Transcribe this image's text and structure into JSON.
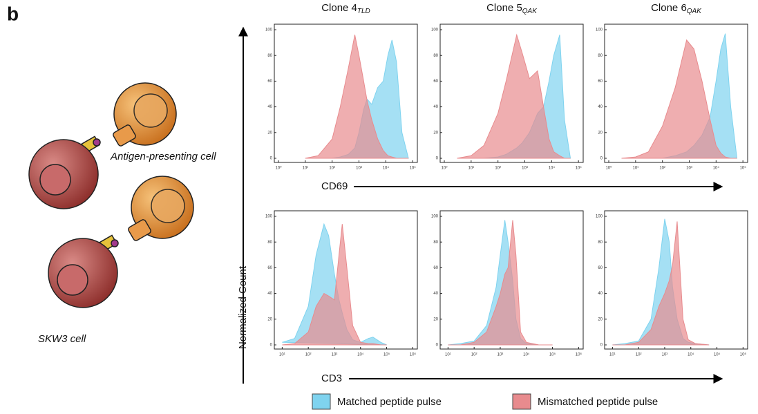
{
  "figure": {
    "panel_label": "b",
    "ylabel": "Normalized Count",
    "row_xlabels": [
      "CD69",
      "CD3"
    ],
    "diagram": {
      "apc_label": "Antigen-presenting cell",
      "t_cell_label": "SKW3 cell"
    }
  },
  "chart_data": [
    {
      "type": "histogram",
      "title": "Clone 4",
      "title_subscript": "TLD",
      "xscale": "log",
      "xlim": [
        0.7,
        150000
      ],
      "ylim": [
        0,
        100
      ],
      "yticks": [
        0,
        20,
        40,
        60,
        80,
        100
      ],
      "xticks": [
        {
          "value": 1,
          "label": "10⁰"
        },
        {
          "value": 10,
          "label": "10¹"
        },
        {
          "value": 100,
          "label": "10²"
        },
        {
          "value": 1000,
          "label": "10³"
        },
        {
          "value": 10000,
          "label": "10⁴"
        },
        {
          "value": 100000,
          "label": "10⁵"
        }
      ],
      "x": [
        10,
        30,
        100,
        200,
        400,
        700,
        1000,
        1500,
        2000,
        3000,
        5000,
        8000,
        12000,
        17000,
        25000,
        40000,
        70000
      ],
      "series": [
        {
          "name": "Matched peptide pulse",
          "color": "#7fd3ef",
          "values": [
            0,
            0,
            0,
            1,
            3,
            8,
            20,
            38,
            46,
            42,
            55,
            60,
            80,
            92,
            75,
            20,
            0
          ]
        },
        {
          "name": "Mismatched peptide pulse",
          "color": "#e88b8e",
          "values": [
            0,
            2,
            15,
            40,
            70,
            96,
            80,
            60,
            45,
            30,
            15,
            6,
            2,
            1,
            0,
            0,
            0
          ]
        }
      ]
    },
    {
      "type": "histogram",
      "title": "Clone 5",
      "title_subscript": "QAK",
      "xscale": "log",
      "xlim": [
        0.7,
        150000
      ],
      "ylim": [
        0,
        100
      ],
      "yticks": [
        0,
        20,
        40,
        60,
        80,
        100
      ],
      "xticks": [
        {
          "value": 1,
          "label": "10⁰"
        },
        {
          "value": 10,
          "label": "10¹"
        },
        {
          "value": 100,
          "label": "10²"
        },
        {
          "value": 1000,
          "label": "10³"
        },
        {
          "value": 10000,
          "label": "10⁴"
        },
        {
          "value": 100000,
          "label": "10⁵"
        }
      ],
      "x": [
        3,
        10,
        30,
        100,
        200,
        500,
        800,
        1500,
        3000,
        5000,
        8000,
        12000,
        20000,
        30000,
        50000
      ],
      "series": [
        {
          "name": "Matched peptide pulse",
          "color": "#7fd3ef",
          "values": [
            0,
            0,
            0,
            1,
            3,
            8,
            12,
            20,
            35,
            40,
            60,
            80,
            96,
            30,
            0
          ]
        },
        {
          "name": "Mismatched peptide pulse",
          "color": "#e88b8e",
          "values": [
            0,
            2,
            10,
            35,
            60,
            96,
            82,
            62,
            68,
            40,
            15,
            5,
            2,
            0,
            0
          ]
        }
      ]
    },
    {
      "type": "histogram",
      "title": "Clone 6",
      "title_subscript": "QAK",
      "xscale": "log",
      "xlim": [
        0.7,
        150000
      ],
      "ylim": [
        0,
        100
      ],
      "yticks": [
        0,
        20,
        40,
        60,
        80,
        100
      ],
      "xticks": [
        {
          "value": 1,
          "label": "10⁰"
        },
        {
          "value": 10,
          "label": "10¹"
        },
        {
          "value": 100,
          "label": "10²"
        },
        {
          "value": 1000,
          "label": "10³"
        },
        {
          "value": 10000,
          "label": "10⁴"
        },
        {
          "value": 100000,
          "label": "10⁵"
        }
      ],
      "x": [
        3,
        10,
        30,
        100,
        300,
        800,
        1500,
        3000,
        6000,
        10000,
        15000,
        22000,
        35000,
        60000
      ],
      "series": [
        {
          "name": "Matched peptide pulse",
          "color": "#7fd3ef",
          "values": [
            0,
            0,
            0,
            0,
            2,
            5,
            10,
            18,
            32,
            60,
            85,
            97,
            40,
            0
          ]
        },
        {
          "name": "Mismatched peptide pulse",
          "color": "#e88b8e",
          "values": [
            0,
            1,
            5,
            25,
            55,
            92,
            85,
            60,
            30,
            10,
            4,
            1,
            0,
            0
          ]
        }
      ]
    },
    {
      "type": "histogram",
      "xscale": "log",
      "xlim": [
        5,
        1500000
      ],
      "ylim": [
        0,
        100
      ],
      "yticks": [
        0,
        20,
        40,
        60,
        80,
        100
      ],
      "xticks": [
        {
          "value": 10,
          "label": "10¹"
        },
        {
          "value": 100,
          "label": "10²"
        },
        {
          "value": 1000,
          "label": "10³"
        },
        {
          "value": 10000,
          "label": "10⁴"
        },
        {
          "value": 100000,
          "label": "10⁵"
        },
        {
          "value": 1000000,
          "label": "10⁶"
        }
      ],
      "x": [
        10,
        30,
        100,
        200,
        400,
        600,
        1000,
        1500,
        2000,
        3000,
        5000,
        10000,
        20000,
        30000,
        60000,
        100000
      ],
      "series": [
        {
          "name": "Matched peptide pulse",
          "color": "#7fd3ef",
          "values": [
            2,
            5,
            30,
            70,
            94,
            85,
            55,
            35,
            25,
            12,
            4,
            2,
            5,
            6,
            2,
            0
          ]
        },
        {
          "name": "Mismatched peptide pulse",
          "color": "#e88b8e",
          "values": [
            0,
            1,
            10,
            30,
            40,
            38,
            35,
            70,
            94,
            60,
            15,
            2,
            1,
            1,
            0,
            0
          ]
        }
      ]
    },
    {
      "type": "histogram",
      "xscale": "log",
      "xlim": [
        5,
        1500000
      ],
      "ylim": [
        0,
        100
      ],
      "yticks": [
        0,
        20,
        40,
        60,
        80,
        100
      ],
      "xticks": [
        {
          "value": 10,
          "label": "10¹"
        },
        {
          "value": 100,
          "label": "10²"
        },
        {
          "value": 1000,
          "label": "10³"
        },
        {
          "value": 10000,
          "label": "10⁴"
        },
        {
          "value": 100000,
          "label": "10⁵"
        },
        {
          "value": 1000000,
          "label": "10⁶"
        }
      ],
      "x": [
        10,
        30,
        100,
        300,
        700,
        1000,
        1500,
        2000,
        3000,
        4000,
        6000,
        10000,
        30000,
        100000
      ],
      "series": [
        {
          "name": "Matched peptide pulse",
          "color": "#7fd3ef",
          "values": [
            0,
            1,
            3,
            15,
            45,
            70,
            97,
            80,
            50,
            20,
            5,
            1,
            0,
            0
          ]
        },
        {
          "name": "Mismatched peptide pulse",
          "color": "#e88b8e",
          "values": [
            0,
            0,
            2,
            10,
            30,
            40,
            55,
            60,
            97,
            70,
            10,
            2,
            0,
            0
          ]
        }
      ]
    },
    {
      "type": "histogram",
      "xscale": "log",
      "xlim": [
        5,
        1500000
      ],
      "ylim": [
        0,
        100
      ],
      "yticks": [
        0,
        20,
        40,
        60,
        80,
        100
      ],
      "xticks": [
        {
          "value": 10,
          "label": "10¹"
        },
        {
          "value": 100,
          "label": "10²"
        },
        {
          "value": 1000,
          "label": "10³"
        },
        {
          "value": 10000,
          "label": "10⁴"
        },
        {
          "value": 100000,
          "label": "10⁵"
        },
        {
          "value": 1000000,
          "label": "10⁶"
        }
      ],
      "x": [
        10,
        30,
        100,
        300,
        600,
        1000,
        1500,
        2000,
        3000,
        5000,
        8000,
        15000,
        50000
      ],
      "series": [
        {
          "name": "Matched peptide pulse",
          "color": "#7fd3ef",
          "values": [
            0,
            1,
            3,
            20,
            60,
            98,
            80,
            45,
            20,
            5,
            2,
            1,
            0
          ]
        },
        {
          "name": "Mismatched peptide pulse",
          "color": "#e88b8e",
          "values": [
            0,
            0,
            2,
            12,
            30,
            40,
            50,
            62,
            96,
            20,
            4,
            1,
            0
          ]
        }
      ]
    }
  ]
}
